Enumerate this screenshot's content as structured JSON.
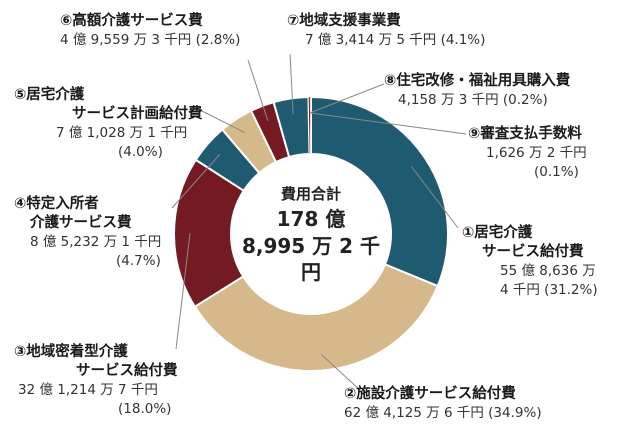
{
  "colors": {
    "teal": "#1e5a70",
    "tan": "#d6b98a",
    "maroon": "#741a22",
    "orange": "#e07020",
    "leader": "#888888"
  },
  "center": {
    "title": "費用合計",
    "line2": "178 億",
    "line3": "8,995 万 2 千円"
  },
  "chart_data": {
    "type": "pie",
    "categories": [
      "①居宅介護サービス給付費",
      "②施設介護サービス給付費",
      "③地域密着型介護サービス給付費",
      "④特定入所者介護サービス費",
      "⑤居宅介護サービス計画給付費",
      "⑥高額介護サービス費",
      "⑦地域支援事業費",
      "⑧住宅改修・福祉用具購入費",
      "⑨審査支払手数料"
    ],
    "values": [
      31.2,
      34.9,
      18.0,
      4.7,
      4.0,
      2.8,
      4.1,
      0.2,
      0.1
    ],
    "slice_colors": [
      "#1e5a70",
      "#d6b98a",
      "#741a22",
      "#1e5a70",
      "#d6b98a",
      "#741a22",
      "#1e5a70",
      "#741a22",
      "#e07020"
    ]
  },
  "labels": [
    {
      "name": "①居宅介護",
      "name2": "サービス給付費",
      "v1": "55 億 8,636 万",
      "v2": "4 千円 (31.2%)"
    },
    {
      "name": "②施設介護サービス給付費",
      "v1": "62 億 4,125 万 6 千円 (34.9%)"
    },
    {
      "name": "③地域密着型介護",
      "name2": "サービス給付費",
      "v1": "32 億 1,214 万 7 千円",
      "v2": "(18.0%)"
    },
    {
      "name": "④特定入所者",
      "name2": "介護サービス費",
      "v1": "8 億 5,232 万 1 千円",
      "v2": "(4.7%)"
    },
    {
      "name": "⑤居宅介護",
      "name2": "サービス計画給付費",
      "v1": "7 億 1,028 万 1 千円",
      "v2": "(4.0%)"
    },
    {
      "name": "⑥高額介護サービス費",
      "v1": "4 億 9,559 万 3 千円 (2.8%)"
    },
    {
      "name": "⑦地域支援事業費",
      "v1": "7 億 3,414 万 5 千円 (4.1%)"
    },
    {
      "name": "⑧住宅改修・福祉用具購入費",
      "v1": "4,158 万 3 千円 (0.2%)"
    },
    {
      "name": "⑨審査支払手数料",
      "v1": "1,626 万 2 千円",
      "v2": "(0.1%)"
    }
  ]
}
